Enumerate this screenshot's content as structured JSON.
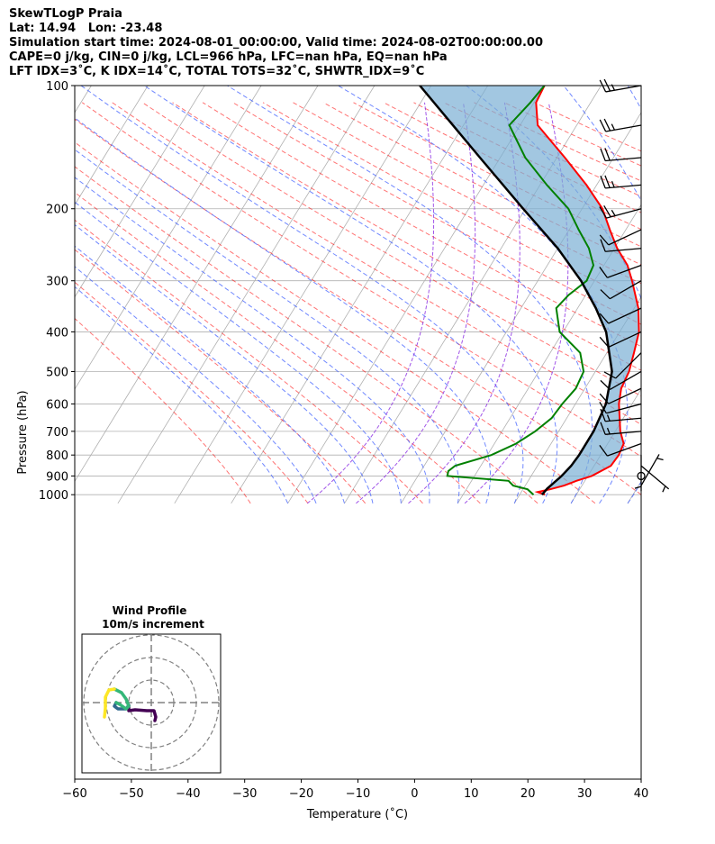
{
  "header": {
    "line1": "SkewTLogP Praia",
    "line2": "Lat: 14.94   Lon: -23.48",
    "line3": "Simulation start time: 2024-08-01_00:00:00, Valid time: 2024-08-02T00:00:00.00",
    "line4": "CAPE=0 j/kg, CIN=0 j/kg, LCL=966 hPa, LFC=nan hPa, EQ=nan hPa",
    "line5": "LFT IDX=3˚C, K IDX=14˚C, TOTAL TOTS=32˚C, SHWTR_IDX=9˚C"
  },
  "chart_data": {
    "type": "line",
    "subtype": "skew-T log-P diagram",
    "xlabel": "Temperature (˚C)",
    "ylabel": "Pressure (hPa)",
    "x_ticks": [
      "−60",
      "−50",
      "−40",
      "−30",
      "−20",
      "−10",
      "0",
      "10",
      "20",
      "30",
      "40"
    ],
    "y_ticks": [
      "100",
      "200",
      "300",
      "400",
      "500",
      "600",
      "700",
      "800",
      "900",
      "1000"
    ],
    "xlim": [
      -60,
      40
    ],
    "ylim": [
      1050,
      100
    ],
    "y_scale": "log",
    "grid": true,
    "series": [
      {
        "role": "temperature",
        "color": "#ff0000",
        "points": [
          [
            1000,
            23
          ],
          [
            985,
            21
          ],
          [
            970,
            22.5
          ],
          [
            950,
            24
          ],
          [
            925,
            25
          ],
          [
            900,
            26.5
          ],
          [
            850,
            27.5
          ],
          [
            800,
            26.5
          ],
          [
            750,
            25
          ],
          [
            700,
            22
          ],
          [
            650,
            19.5
          ],
          [
            600,
            17
          ],
          [
            550,
            15
          ],
          [
            500,
            14
          ],
          [
            450,
            12.5
          ],
          [
            400,
            11
          ],
          [
            350,
            8.5
          ],
          [
            300,
            5
          ],
          [
            275,
            3
          ],
          [
            250,
            0
          ],
          [
            225,
            -2.5
          ],
          [
            200,
            -5
          ],
          [
            175,
            -9
          ],
          [
            150,
            -14
          ],
          [
            125,
            -20
          ],
          [
            110,
            -21
          ],
          [
            100,
            -20
          ]
        ]
      },
      {
        "role": "dewpoint",
        "color": "#008000",
        "points": [
          [
            1000,
            21
          ],
          [
            970,
            18.5
          ],
          [
            950,
            15
          ],
          [
            925,
            13
          ],
          [
            900,
            1
          ],
          [
            875,
            0
          ],
          [
            850,
            0
          ],
          [
            800,
            4
          ],
          [
            750,
            6
          ],
          [
            700,
            7
          ],
          [
            650,
            7.5
          ],
          [
            600,
            7
          ],
          [
            550,
            7
          ],
          [
            500,
            6
          ],
          [
            450,
            3
          ],
          [
            400,
            -3
          ],
          [
            350,
            -6
          ],
          [
            325,
            -5
          ],
          [
            300,
            -3
          ],
          [
            275,
            -3
          ],
          [
            250,
            -5
          ],
          [
            225,
            -8
          ],
          [
            200,
            -11
          ],
          [
            175,
            -16
          ],
          [
            150,
            -21
          ],
          [
            125,
            -25
          ],
          [
            110,
            -22
          ],
          [
            100,
            -20
          ]
        ]
      },
      {
        "role": "parcel",
        "color": "#000000",
        "points": [
          [
            1000,
            22.5
          ],
          [
            966,
            21.8
          ],
          [
            900,
            21.2
          ],
          [
            850,
            20.5
          ],
          [
            800,
            19.5
          ],
          [
            700,
            17.3
          ],
          [
            600,
            14.7
          ],
          [
            500,
            11
          ],
          [
            400,
            5.2
          ],
          [
            350,
            1
          ],
          [
            300,
            -4
          ],
          [
            250,
            -10.5
          ],
          [
            200,
            -19
          ],
          [
            150,
            -29
          ],
          [
            100,
            -42
          ]
        ]
      }
    ],
    "wind_profile": {
      "title": "Wind Profile",
      "subtitle": "10m/s increment",
      "rings_ms": [
        10,
        20,
        30
      ]
    },
    "wind_barbs": [
      {
        "p": 100,
        "dir": 260,
        "spd": 25
      },
      {
        "p": 125,
        "dir": 260,
        "spd": 25
      },
      {
        "p": 150,
        "dir": 265,
        "spd": 20
      },
      {
        "p": 175,
        "dir": 265,
        "spd": 25
      },
      {
        "p": 200,
        "dir": 255,
        "spd": 25
      },
      {
        "p": 225,
        "dir": 245,
        "spd": 10
      },
      {
        "p": 250,
        "dir": 265,
        "spd": 10
      },
      {
        "p": 275,
        "dir": 250,
        "spd": 10
      },
      {
        "p": 300,
        "dir": 240,
        "spd": 10
      },
      {
        "p": 350,
        "dir": 245,
        "spd": 10
      },
      {
        "p": 400,
        "dir": 245,
        "spd": 10
      },
      {
        "p": 450,
        "dir": 225,
        "spd": 10
      },
      {
        "p": 500,
        "dir": 240,
        "spd": 10
      },
      {
        "p": 550,
        "dir": 245,
        "spd": 10
      },
      {
        "p": 600,
        "dir": 255,
        "spd": 10
      },
      {
        "p": 650,
        "dir": 265,
        "spd": 15
      },
      {
        "p": 700,
        "dir": 265,
        "spd": 15
      },
      {
        "p": 750,
        "dir": 250,
        "spd": 10
      },
      {
        "p": 800,
        "dir": 180,
        "spd": 5
      },
      {
        "p": 850,
        "dir": 130,
        "spd": 5
      },
      {
        "p": 900,
        "dir": 60,
        "spd": 0
      },
      {
        "p": 950,
        "dir": 30,
        "spd": 5
      }
    ]
  }
}
